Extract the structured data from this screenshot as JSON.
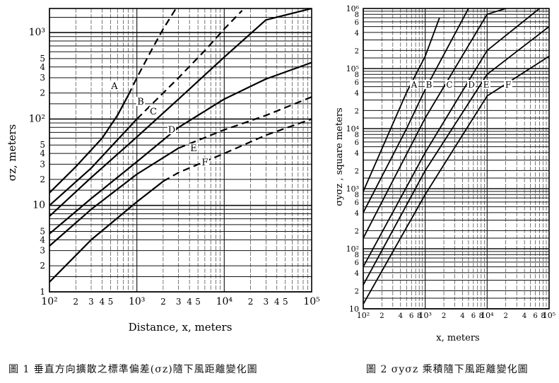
{
  "captions": {
    "fig1": "圖 1 垂直方向擴散之標準偏差(σz)隨下風距離變化圖",
    "fig2": "圖 2 σyσz 乘積隨下風距離變化圖"
  },
  "chart_data": [
    {
      "type": "line",
      "scale": "log-log",
      "xlabel": "Distance, x, meters",
      "ylabel": "σz, meters",
      "xlim": [
        100,
        100000
      ],
      "ylim": [
        1,
        1900
      ],
      "x_tick_labels": [
        "10²",
        "2",
        "3",
        "4",
        "5",
        "10³",
        "2",
        "3",
        "4",
        "5",
        "10⁴",
        "2",
        "3",
        "4",
        "5",
        "10⁵"
      ],
      "y_tick_labels": [
        "1",
        "2",
        "3",
        "4",
        "5",
        "10",
        "2",
        "3",
        "4",
        "5",
        "10²",
        "2",
        "3",
        "4",
        "5",
        "10³"
      ],
      "grid": true,
      "series": [
        {
          "name": "A",
          "x": [
            100,
            200,
            400,
            600,
            800,
            1000,
            1500,
            2000,
            2800
          ],
          "y": [
            14,
            28,
            60,
            110,
            190,
            300,
            650,
            1100,
            1900
          ]
        },
        {
          "name": "B",
          "x": [
            100,
            300,
            1000,
            3000,
            6000,
            10000,
            16000
          ],
          "y": [
            10,
            27,
            100,
            300,
            620,
            1100,
            1800
          ]
        },
        {
          "name": "C",
          "x": [
            100,
            300,
            1000,
            3000,
            10000,
            30000,
            100000
          ],
          "y": [
            7.5,
            21,
            62,
            170,
            520,
            1400,
            1900
          ]
        },
        {
          "name": "D",
          "x": [
            100,
            300,
            1000,
            3000,
            10000,
            30000,
            100000
          ],
          "y": [
            4.7,
            12,
            32,
            80,
            170,
            290,
            450
          ]
        },
        {
          "name": "E",
          "x": [
            100,
            300,
            1000,
            3000,
            10000,
            30000,
            100000
          ],
          "y": [
            3.4,
            9,
            23,
            46,
            75,
            110,
            180
          ]
        },
        {
          "name": "F",
          "x": [
            100,
            300,
            1000,
            2000,
            3000,
            10000,
            30000,
            100000
          ],
          "y": [
            1.3,
            4,
            11,
            19,
            24,
            40,
            65,
            100
          ]
        }
      ]
    },
    {
      "type": "line",
      "scale": "log-log",
      "xlabel": "x, meters",
      "ylabel": "σyσz , square meters",
      "xlim": [
        100,
        100000
      ],
      "ylim": [
        10,
        1000000
      ],
      "x_tick_labels": [
        "10²",
        "2",
        "4",
        "6",
        "8",
        "10³",
        "2",
        "4",
        "6",
        "8",
        "10⁴",
        "2",
        "4",
        "6",
        "8",
        "10⁵"
      ],
      "y_tick_labels": [
        "10",
        "2",
        "4",
        "6",
        "8",
        "10²",
        "2",
        "4",
        "6",
        "8",
        "10³",
        "2",
        "4",
        "6",
        "8",
        "10⁴",
        "2",
        "4",
        "6",
        "8",
        "10⁵",
        "2",
        "4",
        "6",
        "8",
        "10⁶"
      ],
      "grid": true,
      "series": [
        {
          "name": "A",
          "x": [
            100,
            500,
            1000,
            1700
          ],
          "y": [
            900,
            40000,
            160000,
            700000
          ]
        },
        {
          "name": "B",
          "x": [
            100,
            500,
            1000,
            5000
          ],
          "y": [
            400,
            10000,
            45000,
            1000000
          ]
        },
        {
          "name": "C",
          "x": [
            100,
            1000,
            10000,
            20000
          ],
          "y": [
            150,
            15000,
            800000,
            1000000
          ]
        },
        {
          "name": "D",
          "x": [
            100,
            1000,
            10000,
            70000
          ],
          "y": [
            50,
            4000,
            200000,
            1000000
          ]
        },
        {
          "name": "E",
          "x": [
            100,
            1000,
            10000,
            100000
          ],
          "y": [
            25,
            2000,
            80000,
            500000
          ]
        },
        {
          "name": "F",
          "x": [
            100,
            1000,
            10000,
            100000
          ],
          "y": [
            12,
            800,
            35000,
            160000
          ]
        }
      ]
    }
  ]
}
